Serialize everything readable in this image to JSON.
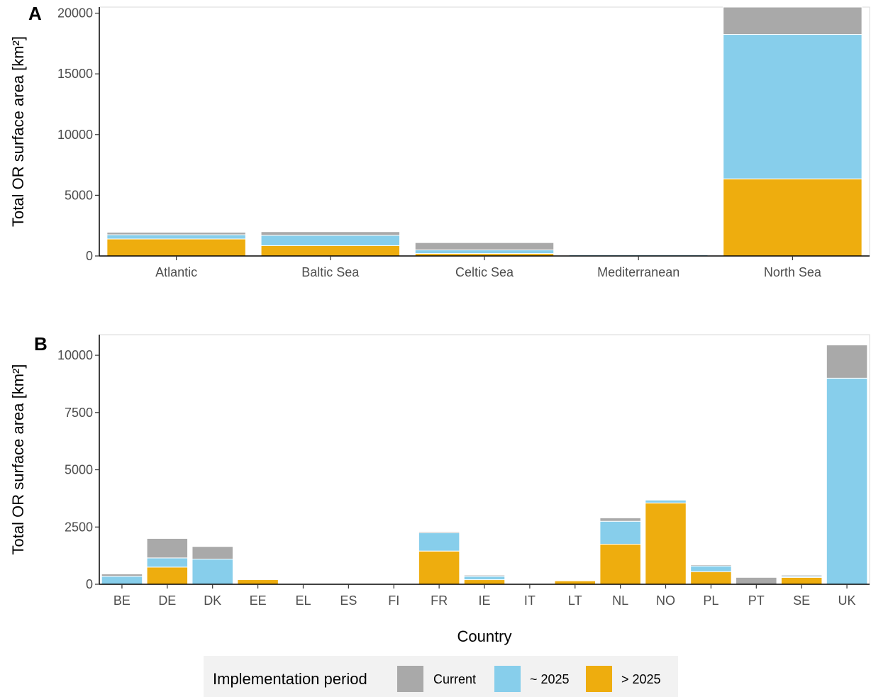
{
  "colors": {
    "Current": "#A9A9A9",
    "~ 2025": "#87CEEB",
    "> 2025": "#EEAD0E"
  },
  "legend": {
    "title": "Implementation period",
    "placement": "bottom",
    "items": [
      "Current",
      "~ 2025",
      "> 2025"
    ]
  },
  "chart_data": [
    {
      "type": "bar",
      "stacked": true,
      "panel_label": "A",
      "ylabel": "Total OR surface area [km²]",
      "xlabel": "",
      "ylim": [
        0,
        20500
      ],
      "yticks": [
        0,
        5000,
        10000,
        15000,
        20000
      ],
      "grid": false,
      "categories": [
        "Atlantic",
        "Baltic Sea",
        "Celtic Sea",
        "Mediterranean",
        "North Sea"
      ],
      "series": [
        {
          "name": "> 2025",
          "values": [
            1400,
            850,
            200,
            0,
            6350
          ]
        },
        {
          "name": "~ 2025",
          "values": [
            350,
            850,
            300,
            100,
            11900
          ]
        },
        {
          "name": "Current",
          "values": [
            200,
            300,
            600,
            0,
            2250
          ]
        }
      ]
    },
    {
      "type": "bar",
      "stacked": true,
      "panel_label": "B",
      "ylabel": "Total OR surface area [km²]",
      "xlabel": "Country",
      "ylim": [
        0,
        10900
      ],
      "yticks": [
        0,
        2500,
        5000,
        7500,
        10000
      ],
      "grid": false,
      "categories": [
        "BE",
        "DE",
        "DK",
        "EE",
        "EL",
        "ES",
        "FI",
        "FR",
        "IE",
        "IT",
        "LT",
        "NL",
        "NO",
        "PL",
        "PT",
        "SE",
        "UK"
      ],
      "series": [
        {
          "name": "> 2025",
          "values": [
            0,
            750,
            0,
            200,
            0,
            0,
            0,
            1450,
            200,
            0,
            150,
            1750,
            3550,
            550,
            0,
            300,
            0
          ]
        },
        {
          "name": "~ 2025",
          "values": [
            350,
            400,
            1100,
            0,
            0,
            0,
            0,
            800,
            150,
            0,
            0,
            1000,
            130,
            250,
            0,
            50,
            9000
          ]
        },
        {
          "name": "Current",
          "values": [
            100,
            850,
            550,
            0,
            20,
            30,
            20,
            50,
            50,
            10,
            0,
            150,
            20,
            50,
            300,
            50,
            1450
          ]
        }
      ]
    }
  ]
}
